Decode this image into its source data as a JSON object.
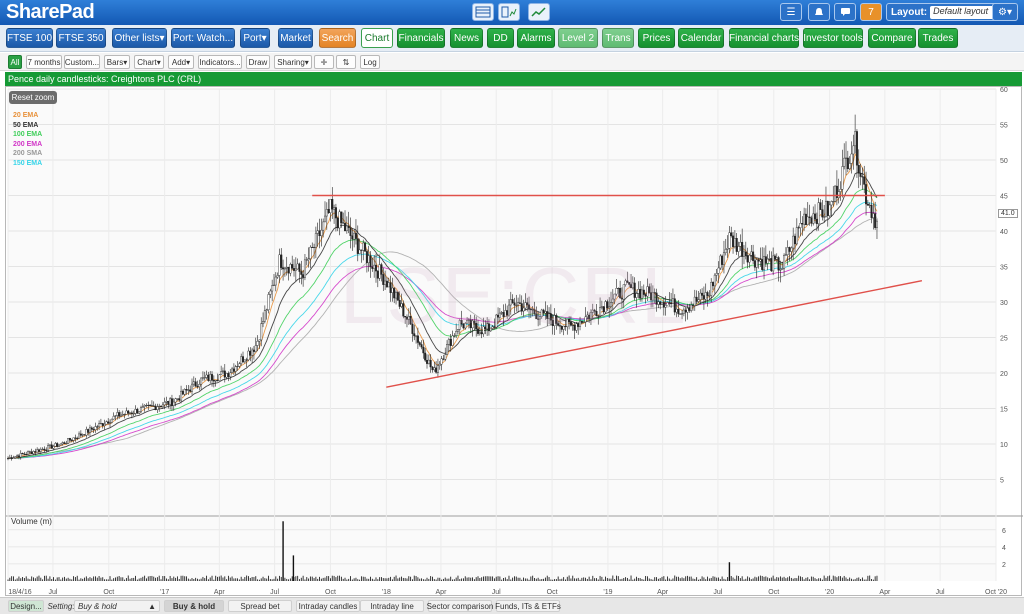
{
  "app": {
    "logo": "SharePad"
  },
  "topbar": {
    "badge_count": "7",
    "layout_label": "Layout:",
    "layout_value": "Default layout"
  },
  "nav": [
    {
      "label": "FTSE 100"
    },
    {
      "label": "FTSE 350"
    },
    {
      "label": "Other lists▾"
    },
    {
      "label": "Port: Watch..."
    },
    {
      "label": "Port▾"
    },
    {
      "label": "Market"
    },
    {
      "label": "Search"
    },
    {
      "label": "Chart"
    },
    {
      "label": "Financials"
    },
    {
      "label": "News"
    },
    {
      "label": "DD"
    },
    {
      "label": "Alarms"
    },
    {
      "label": "Level 2"
    },
    {
      "label": "Trans"
    },
    {
      "label": "Prices"
    },
    {
      "label": "Calendar"
    },
    {
      "label": "Financial charts"
    },
    {
      "label": "Investor tools"
    },
    {
      "label": "Compare"
    },
    {
      "label": "Trades"
    }
  ],
  "toolbar": [
    {
      "label": "All"
    },
    {
      "label": "7 months"
    },
    {
      "label": "Custom..."
    },
    {
      "label": "Bars▾"
    },
    {
      "label": "Chart▾"
    },
    {
      "label": "Add▾"
    },
    {
      "label": "Indicators..."
    },
    {
      "label": "Draw"
    },
    {
      "label": "Sharing▾"
    },
    {
      "label": "✛"
    },
    {
      "label": "⇅"
    },
    {
      "label": "Log"
    }
  ],
  "chart_title": "Pence daily candlesticks: Creightons PLC (CRL)",
  "watermark": "LSE:CRL",
  "reset_zoom": "Reset zoom",
  "legend": [
    {
      "label": "20 EMA",
      "color": "#e8913a"
    },
    {
      "label": "50 EMA",
      "color": "#333333"
    },
    {
      "label": "100 EMA",
      "color": "#3fcf5a"
    },
    {
      "label": "200 EMA",
      "color": "#d236c8"
    },
    {
      "label": "200 SMA",
      "color": "#999999"
    },
    {
      "label": "150 EMA",
      "color": "#35d4e8"
    }
  ],
  "last_price": "41.0",
  "volume_label": "Volume (m)",
  "chart_data": {
    "type": "candlestick",
    "x_ticks": [
      "18/4/16",
      "Jul",
      "Oct",
      "'17",
      "Apr",
      "Jul",
      "Oct",
      "'18",
      "Apr",
      "Jul",
      "Oct",
      "'19",
      "Apr",
      "Jul",
      "Oct",
      "'20",
      "Apr",
      "Jul",
      "Oct '20"
    ],
    "y_ticks": [
      5,
      10,
      15,
      20,
      25,
      30,
      35,
      40,
      45,
      50,
      55,
      60
    ],
    "ylim": [
      0,
      60
    ],
    "vol_ticks": [
      2,
      4,
      6
    ],
    "vol_ylim": [
      0,
      7.5
    ],
    "close_series": [
      {
        "d": "2016-04-18",
        "v": 8.0
      },
      {
        "d": "2016-06-01",
        "v": 9.0
      },
      {
        "d": "2016-07-15",
        "v": 10.0
      },
      {
        "d": "2016-09-01",
        "v": 12.0
      },
      {
        "d": "2016-10-15",
        "v": 14.0
      },
      {
        "d": "2016-12-01",
        "v": 15.0
      },
      {
        "d": "2017-01-15",
        "v": 16.0
      },
      {
        "d": "2017-03-01",
        "v": 19.0
      },
      {
        "d": "2017-04-15",
        "v": 20.0
      },
      {
        "d": "2017-06-01",
        "v": 24.0
      },
      {
        "d": "2017-07-10",
        "v": 36.0
      },
      {
        "d": "2017-08-15",
        "v": 34.0
      },
      {
        "d": "2017-10-01",
        "v": 43.0
      },
      {
        "d": "2017-11-15",
        "v": 38.0
      },
      {
        "d": "2018-01-01",
        "v": 33.0
      },
      {
        "d": "2018-02-15",
        "v": 26.0
      },
      {
        "d": "2018-03-20",
        "v": 20.0
      },
      {
        "d": "2018-05-01",
        "v": 27.0
      },
      {
        "d": "2018-06-15",
        "v": 26.0
      },
      {
        "d": "2018-08-01",
        "v": 30.0
      },
      {
        "d": "2018-09-15",
        "v": 28.0
      },
      {
        "d": "2018-11-01",
        "v": 26.5
      },
      {
        "d": "2018-12-15",
        "v": 29.0
      },
      {
        "d": "2019-02-01",
        "v": 32.0
      },
      {
        "d": "2019-03-15",
        "v": 31.0
      },
      {
        "d": "2019-05-01",
        "v": 29.0
      },
      {
        "d": "2019-06-15",
        "v": 31.0
      },
      {
        "d": "2019-07-20",
        "v": 39.0
      },
      {
        "d": "2019-09-01",
        "v": 36.0
      },
      {
        "d": "2019-10-15",
        "v": 35.0
      },
      {
        "d": "2019-11-20",
        "v": 42.0
      },
      {
        "d": "2020-01-01",
        "v": 43.0
      },
      {
        "d": "2020-02-10",
        "v": 53.0
      },
      {
        "d": "2020-03-01",
        "v": 45.0
      },
      {
        "d": "2020-03-20",
        "v": 41.0
      }
    ],
    "volume_spikes": [
      {
        "d": "2017-07-15",
        "v": 7.0
      },
      {
        "d": "2017-08-01",
        "v": 3.0
      },
      {
        "d": "2019-07-20",
        "v": 2.2
      }
    ],
    "resistance_line": {
      "from": {
        "d": "2017-09-01",
        "v": 45
      },
      "to": {
        "d": "2020-04-01",
        "v": 45
      },
      "color": "#e0504a"
    },
    "support_line": {
      "from": {
        "d": "2018-01-01",
        "v": 18
      },
      "to": {
        "d": "2020-06-01",
        "v": 33
      },
      "color": "#e0504a"
    }
  },
  "bottom": {
    "design": "Design...",
    "setting_label": "Setting:",
    "setting_value": "Buy & hold",
    "tabs": [
      {
        "label": "Buy & hold"
      },
      {
        "label": "Spread bet"
      },
      {
        "label": "Intraday candles"
      },
      {
        "label": "Intraday line"
      },
      {
        "label": "Sector comparison"
      },
      {
        "label": "Funds, ITs & ETFs"
      }
    ]
  }
}
